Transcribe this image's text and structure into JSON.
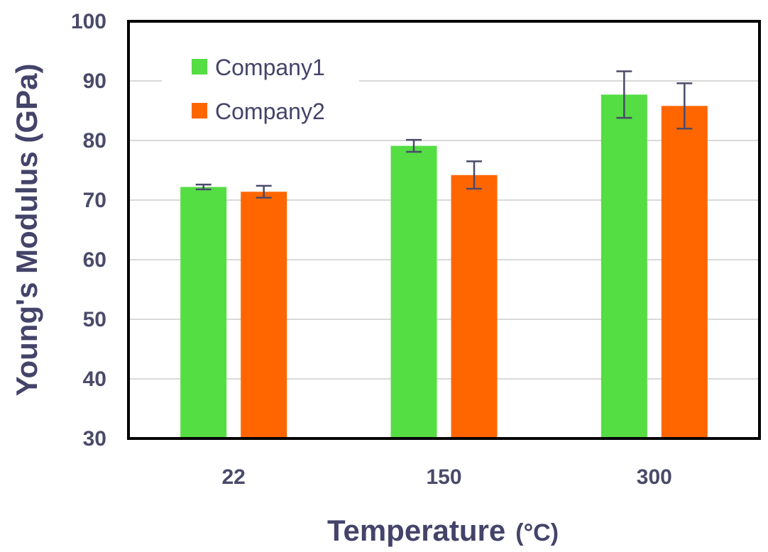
{
  "chart_data": {
    "type": "bar",
    "xlabel": "Temperature",
    "xlabel_unit": "(°C)",
    "ylabel": "Young's Modulus (GPa)",
    "categories": [
      "22",
      "150",
      "300"
    ],
    "ylim": [
      30,
      100
    ],
    "yticks": [
      30,
      40,
      50,
      60,
      70,
      80,
      90,
      100
    ],
    "grid": true,
    "legend_position": "top-left",
    "series": [
      {
        "name": "Company1",
        "color": "#55dd44",
        "values": [
          72.2,
          79.1,
          87.7
        ],
        "errors": [
          0.4,
          1.0,
          3.9
        ]
      },
      {
        "name": "Company2",
        "color": "#ff6600",
        "values": [
          71.4,
          74.2,
          85.8
        ],
        "errors": [
          1.0,
          2.3,
          3.8
        ]
      }
    ]
  }
}
